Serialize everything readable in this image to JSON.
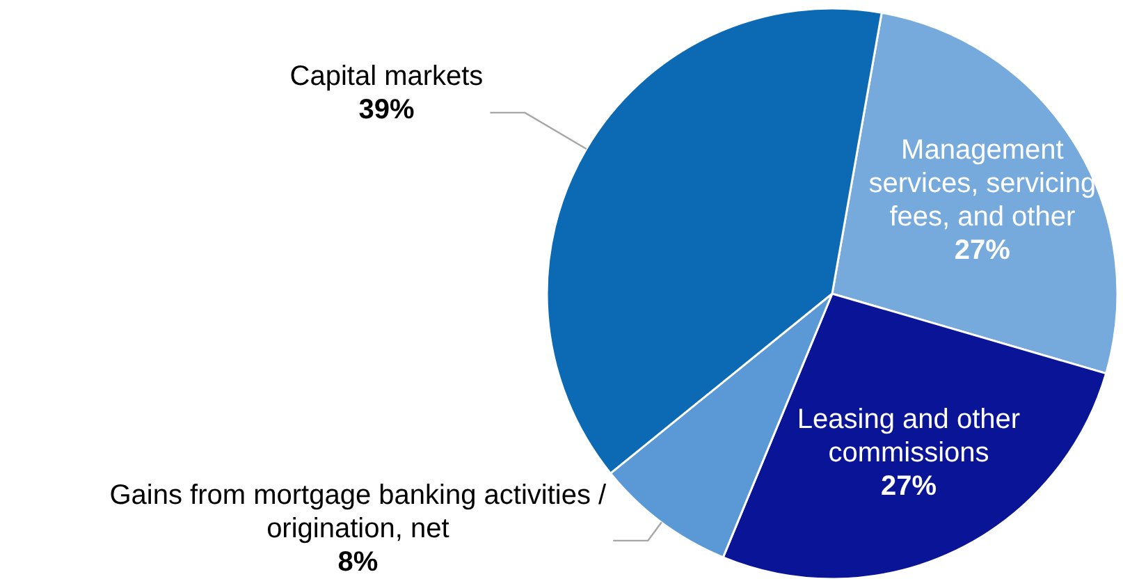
{
  "chart_data": {
    "type": "pie",
    "categories": [
      "Management services, servicing fees, and other",
      "Leasing and other commissions",
      "Gains from mortgage banking activities / origination, net",
      "Capital markets"
    ],
    "values": [
      27,
      27,
      8,
      39
    ],
    "colors": [
      "#76aadc",
      "#0a1496",
      "#5a98d6",
      "#0b6ab3"
    ],
    "value_labels": [
      "27%",
      "27%",
      "8%",
      "39%"
    ]
  }
}
